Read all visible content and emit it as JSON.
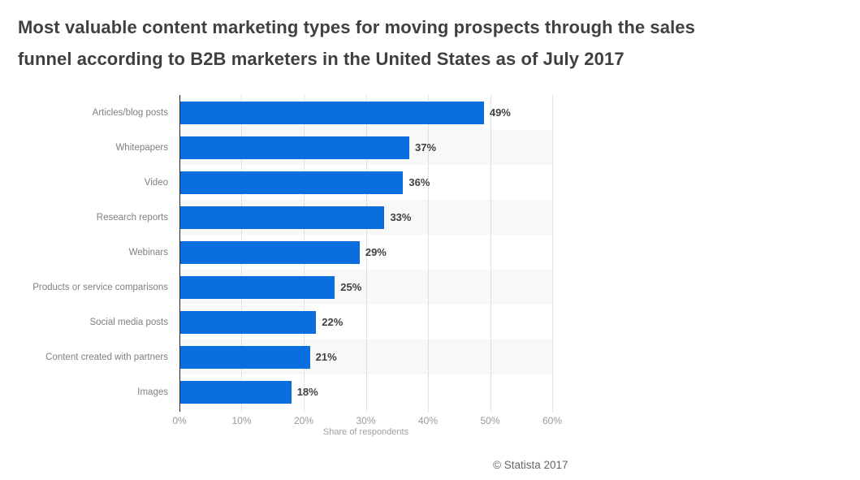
{
  "chart_data": {
    "type": "bar",
    "orientation": "horizontal",
    "title": "Most valuable content marketing types for moving prospects through the sales funnel according to B2B marketers in the United States as of July 2017",
    "title_lines": [
      "Most valuable content marketing types for moving prospects through the sales",
      "funnel according to B2B marketers in the United States as of July 2017"
    ],
    "categories": [
      "Articles/blog posts",
      "Whitepapers",
      "Video",
      "Research reports",
      "Webinars",
      "Products or service comparisons",
      "Social media posts",
      "Content created with partners",
      "Images"
    ],
    "values": [
      49,
      37,
      36,
      33,
      29,
      25,
      22,
      21,
      18
    ],
    "value_labels": [
      "49%",
      "37%",
      "36%",
      "33%",
      "29%",
      "25%",
      "22%",
      "21%",
      "18%"
    ],
    "xlabel": "Share of respondents",
    "ylabel": "",
    "xlim": [
      0,
      60
    ],
    "xticks": [
      "0%",
      "10%",
      "20%",
      "30%",
      "40%",
      "50%",
      "60%"
    ],
    "grid": "vertical-dotted",
    "legend": "none",
    "bar_color": "#0a6edf",
    "stripe_color": "#f8f8f8",
    "axis_color": "#262626",
    "gridline_color": "#c9c9c9"
  },
  "footer": {
    "copyright": "© Statista 2017"
  }
}
